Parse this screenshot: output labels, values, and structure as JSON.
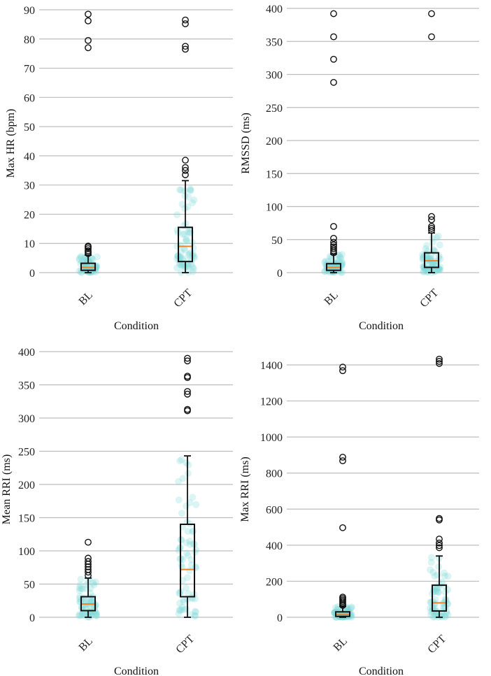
{
  "chart_data": [
    {
      "type": "box",
      "panel": "top-left",
      "xlabel": "Condition",
      "ylabel": "Max HR (bpm)",
      "categories": [
        "BL",
        "CPT"
      ],
      "ylim": [
        0,
        90
      ],
      "yticks": [
        0,
        10,
        20,
        30,
        40,
        50,
        60,
        70,
        80,
        90
      ],
      "grid": true,
      "boxes": [
        {
          "category": "BL",
          "whislo": 0,
          "q1": 0.8,
          "median": 1.8,
          "q3": 3.2,
          "whishi": 6.0,
          "fliers": [
            6.5,
            7.0,
            7.5,
            8.2,
            8.8,
            9.1,
            77.0,
            79.5,
            86.2,
            88.5
          ]
        },
        {
          "category": "CPT",
          "whislo": 0,
          "q1": 3.8,
          "median": 9.0,
          "q3": 15.5,
          "whishi": 31.5,
          "fliers": [
            33.5,
            35.0,
            36.0,
            38.5,
            76.5,
            77.5,
            85.2,
            86.5
          ]
        }
      ]
    },
    {
      "type": "box",
      "panel": "top-right",
      "xlabel": "Condition",
      "ylabel": "RMSSD (ms)",
      "categories": [
        "BL",
        "CPT"
      ],
      "ylim": [
        0,
        400
      ],
      "yticks": [
        0,
        50,
        100,
        150,
        200,
        250,
        300,
        350,
        400
      ],
      "grid": true,
      "boxes": [
        {
          "category": "BL",
          "whislo": 0,
          "q1": 3.5,
          "median": 8.0,
          "q3": 13.5,
          "whishi": 28.0,
          "fliers": [
            30,
            33,
            36,
            39,
            42,
            46,
            52,
            70,
            288,
            323,
            357,
            392
          ]
        },
        {
          "category": "CPT",
          "whislo": 0,
          "q1": 8.0,
          "median": 18.0,
          "q3": 30.0,
          "whishi": 60.0,
          "fliers": [
            64,
            67,
            70,
            80,
            85,
            357,
            392
          ]
        }
      ]
    },
    {
      "type": "box",
      "panel": "bottom-left",
      "xlabel": "Condition",
      "ylabel": "Mean RRI (ms)",
      "categories": [
        "BL",
        "CPT"
      ],
      "ylim": [
        0,
        400
      ],
      "yticks": [
        0,
        50,
        100,
        150,
        200,
        250,
        300,
        350,
        400
      ],
      "grid": true,
      "boxes": [
        {
          "category": "BL",
          "whislo": 0,
          "q1": 10.0,
          "median": 20.0,
          "q3": 31.0,
          "whishi": 59.0,
          "fliers": [
            63,
            68,
            72,
            76,
            80,
            84,
            89,
            113
          ]
        },
        {
          "category": "CPT",
          "whislo": 0,
          "q1": 31.0,
          "median": 72.0,
          "q3": 140.0,
          "whishi": 243.0,
          "fliers": [
            311,
            313,
            336,
            340,
            361,
            363,
            386,
            390
          ]
        }
      ]
    },
    {
      "type": "box",
      "panel": "bottom-right",
      "xlabel": "Condition",
      "ylabel": "Max RRI (ms)",
      "categories": [
        "BL",
        "CPT"
      ],
      "ylim": [
        0,
        1400
      ],
      "yticks": [
        0,
        200,
        400,
        600,
        800,
        1000,
        1200,
        1400
      ],
      "grid": true,
      "boxes": [
        {
          "category": "BL",
          "whislo": 0,
          "q1": 5.0,
          "median": 15.0,
          "q3": 30.0,
          "whishi": 60.0,
          "fliers": [
            66,
            72,
            80,
            88,
            96,
            104,
            112,
            497,
            868,
            888,
            1368,
            1388
          ]
        },
        {
          "category": "CPT",
          "whislo": 0,
          "q1": 35.0,
          "median": 80.0,
          "q3": 178.0,
          "whishi": 340.0,
          "fliers": [
            386,
            398,
            412,
            434,
            540,
            548,
            1408,
            1420,
            1432
          ]
        }
      ]
    }
  ],
  "colors": {
    "box": "#111111",
    "median": "#e8862a",
    "jitter": "#7dd8d8",
    "grid": "#bdbdbd",
    "axis": "#333333"
  }
}
